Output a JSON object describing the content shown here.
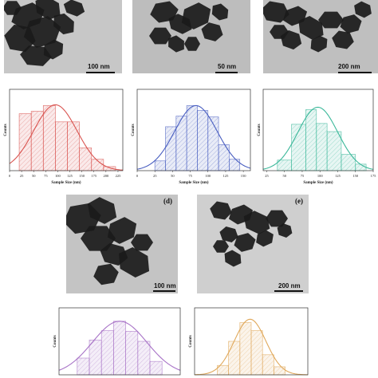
{
  "micrographs": [
    {
      "id": "a",
      "letter": "",
      "scale_label": "100 nm",
      "color": "#c7c7c7"
    },
    {
      "id": "b",
      "letter": "",
      "scale_label": "50 nm",
      "color": "#bdbdbd"
    },
    {
      "id": "c",
      "letter": "",
      "scale_label": "200 nm",
      "color": "#bfbfbf"
    },
    {
      "id": "d",
      "letter": "(d)",
      "scale_label": "100 nm",
      "color": "#c4c4c4"
    },
    {
      "id": "e",
      "letter": "(e)",
      "scale_label": "200 nm",
      "color": "#cfcfcf"
    }
  ],
  "chart_data": [
    {
      "type": "bar",
      "panel": "a",
      "color": "#d9534f",
      "xlabel": "Sample Size (nm)",
      "ylabel": "Counts",
      "xlim": [
        0,
        235
      ],
      "ylim": [
        0,
        10
      ],
      "xticks": [
        0,
        25,
        50,
        75,
        100,
        125,
        150,
        175,
        200,
        225
      ],
      "bins": [
        [
          20,
          45,
          7.0
        ],
        [
          45,
          70,
          7.3
        ],
        [
          70,
          95,
          8.0
        ],
        [
          95,
          120,
          6.0
        ],
        [
          120,
          145,
          6.0
        ],
        [
          145,
          170,
          2.8
        ],
        [
          170,
          195,
          1.4
        ],
        [
          195,
          220,
          0.5
        ]
      ],
      "fit": {
        "mean": 95,
        "sd": 45,
        "peak": 8.1
      }
    },
    {
      "type": "bar",
      "panel": "b",
      "color": "#4a5fc1",
      "xlabel": "Sample Size (nm)",
      "ylabel": "Counts",
      "xlim": [
        0,
        160
      ],
      "ylim": [
        0,
        10
      ],
      "xticks": [
        0,
        25,
        50,
        75,
        100,
        125,
        150
      ],
      "bins": [
        [
          25,
          40,
          1.2
        ],
        [
          40,
          55,
          5.4
        ],
        [
          55,
          70,
          6.7
        ],
        [
          70,
          85,
          8.0
        ],
        [
          85,
          100,
          7.4
        ],
        [
          100,
          115,
          6.6
        ],
        [
          115,
          130,
          3.2
        ],
        [
          130,
          145,
          1.4
        ]
      ],
      "fit": {
        "mean": 83,
        "sd": 30,
        "peak": 8.0
      }
    },
    {
      "type": "bar",
      "panel": "c",
      "color": "#3bb89a",
      "xlabel": "Sample Size (nm)",
      "ylabel": "Counts",
      "xlim": [
        20,
        175
      ],
      "ylim": [
        0,
        10
      ],
      "xticks": [
        25,
        50,
        75,
        100,
        125,
        150,
        175
      ],
      "bins": [
        [
          40,
          60,
          1.3
        ],
        [
          60,
          80,
          5.7
        ],
        [
          80,
          95,
          7.5
        ],
        [
          95,
          110,
          5.8
        ],
        [
          110,
          130,
          4.8
        ],
        [
          130,
          150,
          2.0
        ],
        [
          150,
          165,
          0.8
        ]
      ],
      "fit": {
        "mean": 97,
        "sd": 28,
        "peak": 7.8
      }
    },
    {
      "type": "bar",
      "panel": "d",
      "color": "#a873c7",
      "xlabel": "",
      "ylabel": "Counts",
      "xlim": [
        0,
        200
      ],
      "ylim": [
        0,
        10
      ],
      "xticks": [],
      "bins": [
        [
          30,
          50,
          2.5
        ],
        [
          50,
          70,
          5.2
        ],
        [
          70,
          90,
          6.6
        ],
        [
          90,
          110,
          8.0
        ],
        [
          110,
          130,
          6.5
        ],
        [
          130,
          150,
          5.0
        ],
        [
          150,
          170,
          2.0
        ]
      ],
      "fit": {
        "mean": 100,
        "sd": 45,
        "peak": 8.0
      }
    },
    {
      "type": "bar",
      "panel": "e",
      "color": "#e0a85a",
      "xlabel": "",
      "ylabel": "Counts",
      "xlim": [
        0,
        200
      ],
      "ylim": [
        0,
        10
      ],
      "xticks": [],
      "bins": [
        [
          40,
          60,
          1.4
        ],
        [
          60,
          80,
          5.0
        ],
        [
          80,
          100,
          7.8
        ],
        [
          100,
          120,
          6.6
        ],
        [
          120,
          140,
          3.0
        ],
        [
          140,
          160,
          1.2
        ]
      ],
      "fit": {
        "mean": 98,
        "sd": 28,
        "peak": 8.3
      }
    }
  ]
}
